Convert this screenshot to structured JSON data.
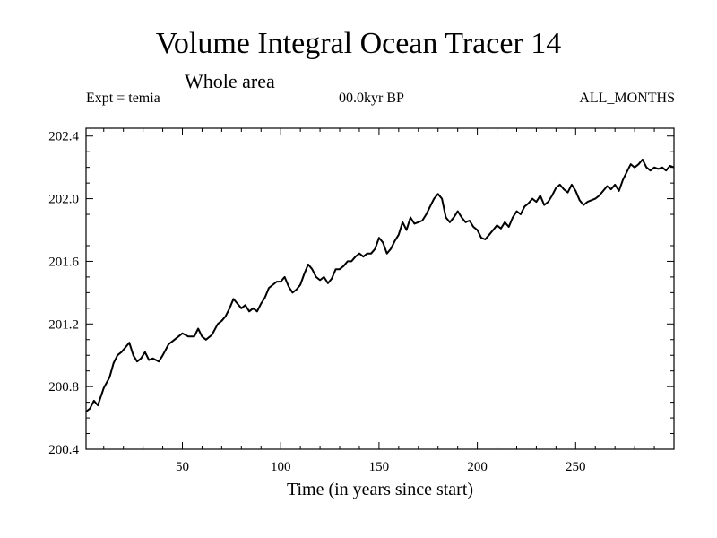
{
  "chart_data": {
    "type": "line",
    "title": "Volume Integral Ocean Tracer 14",
    "subtitle": "Whole area",
    "header_left": "Expt = temia",
    "header_center": "00.0kyr BP",
    "header_right": "ALL_MONTHS",
    "xlabel": "Time (in years since start)",
    "ylabel": "",
    "xlim": [
      1,
      300
    ],
    "ylim": [
      200.4,
      202.45
    ],
    "xticks": [
      50,
      100,
      150,
      200,
      250
    ],
    "yticks": [
      200.4,
      200.8,
      201.2,
      201.6,
      202.0,
      202.4
    ],
    "ytick_labels": [
      "200.4",
      "200.8",
      "201.2",
      "201.6",
      "202.0",
      "202.4"
    ],
    "series": [
      {
        "name": "Tracer 14",
        "x": [
          1,
          3,
          5,
          7,
          10,
          13,
          15,
          17,
          19,
          21,
          23,
          25,
          27,
          29,
          31,
          33,
          35,
          38,
          40,
          43,
          46,
          48,
          50,
          53,
          56,
          58,
          60,
          62,
          65,
          68,
          70,
          72,
          74,
          76,
          78,
          80,
          82,
          84,
          86,
          88,
          90,
          92,
          94,
          96,
          98,
          100,
          102,
          104,
          106,
          108,
          110,
          112,
          114,
          116,
          118,
          120,
          122,
          124,
          126,
          128,
          130,
          132,
          134,
          136,
          138,
          140,
          142,
          144,
          146,
          148,
          150,
          152,
          154,
          156,
          158,
          160,
          162,
          164,
          166,
          168,
          170,
          172,
          174,
          176,
          178,
          180,
          182,
          184,
          186,
          188,
          190,
          192,
          194,
          196,
          198,
          200,
          202,
          204,
          206,
          208,
          210,
          212,
          214,
          216,
          218,
          220,
          222,
          224,
          226,
          228,
          230,
          232,
          234,
          236,
          238,
          240,
          242,
          244,
          246,
          248,
          250,
          252,
          254,
          256,
          258,
          260,
          262,
          264,
          266,
          268,
          270,
          272,
          274,
          276,
          278,
          280,
          282,
          284,
          286,
          288,
          290,
          292,
          294,
          296,
          298,
          300
        ],
        "values": [
          200.64,
          200.66,
          200.71,
          200.68,
          200.79,
          200.86,
          200.95,
          201.0,
          201.02,
          201.05,
          201.08,
          201.0,
          200.96,
          200.98,
          201.02,
          200.97,
          200.98,
          200.96,
          201.0,
          201.07,
          201.1,
          201.12,
          201.14,
          201.12,
          201.12,
          201.17,
          201.12,
          201.1,
          201.13,
          201.2,
          201.22,
          201.25,
          201.3,
          201.36,
          201.33,
          201.3,
          201.32,
          201.28,
          201.3,
          201.28,
          201.33,
          201.37,
          201.43,
          201.45,
          201.47,
          201.47,
          201.5,
          201.44,
          201.4,
          201.42,
          201.45,
          201.52,
          201.58,
          201.55,
          201.5,
          201.48,
          201.5,
          201.46,
          201.49,
          201.55,
          201.55,
          201.57,
          201.6,
          201.6,
          201.63,
          201.65,
          201.63,
          201.65,
          201.65,
          201.68,
          201.75,
          201.72,
          201.65,
          201.68,
          201.73,
          201.77,
          201.85,
          201.8,
          201.88,
          201.84,
          201.85,
          201.86,
          201.9,
          201.95,
          202.0,
          202.03,
          202.0,
          201.88,
          201.85,
          201.88,
          201.92,
          201.88,
          201.85,
          201.86,
          201.82,
          201.8,
          201.75,
          201.74,
          201.77,
          201.8,
          201.83,
          201.81,
          201.85,
          201.82,
          201.88,
          201.92,
          201.9,
          201.95,
          201.97,
          202.0,
          201.98,
          202.02,
          201.96,
          201.98,
          202.02,
          202.07,
          202.09,
          202.06,
          202.04,
          202.09,
          202.05,
          201.99,
          201.96,
          201.98,
          201.99,
          202.0,
          202.02,
          202.05,
          202.08,
          202.06,
          202.09,
          202.05,
          202.12,
          202.17,
          202.22,
          202.2,
          202.22,
          202.25,
          202.2,
          202.18,
          202.2,
          202.19,
          202.2,
          202.18,
          202.21,
          202.2
        ]
      }
    ]
  }
}
